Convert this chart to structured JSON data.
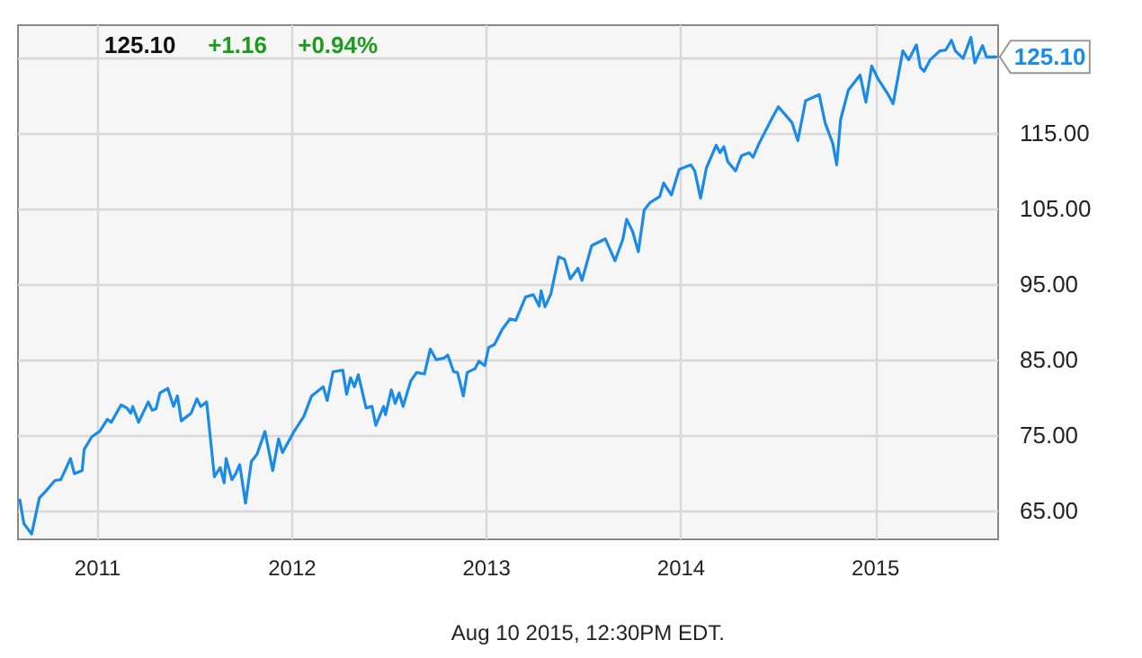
{
  "chart_data": {
    "type": "line",
    "x": [
      2010.6,
      2010.62,
      2010.66,
      2010.7,
      2010.73,
      2010.78,
      2010.81,
      2010.86,
      2010.88,
      2010.92,
      2010.93,
      2010.97,
      2011.01,
      2011.05,
      2011.07,
      2011.12,
      2011.15,
      2011.17,
      2011.18,
      2011.21,
      2011.26,
      2011.28,
      2011.3,
      2011.32,
      2011.36,
      2011.39,
      2011.41,
      2011.43,
      2011.48,
      2011.51,
      2011.53,
      2011.56,
      2011.6,
      2011.63,
      2011.65,
      2011.66,
      2011.69,
      2011.71,
      2011.73,
      2011.76,
      2011.79,
      2011.82,
      2011.86,
      2011.9,
      2011.93,
      2011.95,
      2012.01,
      2012.06,
      2012.1,
      2012.16,
      2012.18,
      2012.21,
      2012.26,
      2012.28,
      2012.3,
      2012.32,
      2012.34,
      2012.38,
      2012.41,
      2012.43,
      2012.47,
      2012.48,
      2012.51,
      2012.53,
      2012.55,
      2012.57,
      2012.61,
      2012.64,
      2012.68,
      2012.71,
      2012.74,
      2012.78,
      2012.8,
      2012.83,
      2012.85,
      2012.88,
      2012.9,
      2012.94,
      2012.96,
      2012.99,
      2013.01,
      2013.04,
      2013.08,
      2013.12,
      2013.15,
      2013.2,
      2013.24,
      2013.27,
      2013.28,
      2013.3,
      2013.33,
      2013.37,
      2013.4,
      2013.43,
      2013.47,
      2013.49,
      2013.54,
      2013.61,
      2013.66,
      2013.7,
      2013.72,
      2013.75,
      2013.78,
      2013.81,
      2013.84,
      2013.89,
      2013.91,
      2013.95,
      2013.99,
      2014.05,
      2014.07,
      2014.1,
      2014.13,
      2014.18,
      2014.2,
      2014.22,
      2014.24,
      2014.28,
      2014.31,
      2014.35,
      2014.37,
      2014.4,
      2014.47,
      2014.5,
      2014.57,
      2014.6,
      2014.64,
      2014.71,
      2014.74,
      2014.78,
      2014.8,
      2014.82,
      2014.86,
      2014.92,
      2014.95,
      2014.98,
      2015.01,
      2015.06,
      2015.09,
      2015.14,
      2015.17,
      2015.21,
      2015.23,
      2015.25,
      2015.28,
      2015.33,
      2015.36,
      2015.39,
      2015.41,
      2015.45,
      2015.49,
      2015.51,
      2015.55,
      2015.57,
      2015.62
    ],
    "series": [
      {
        "color": "#1a8be6",
        "values": [
          66.4,
          63.3,
          61.9,
          66.7,
          67.5,
          69.0,
          69.1,
          71.9,
          69.9,
          70.3,
          73.1,
          74.8,
          75.5,
          77.1,
          76.7,
          79.0,
          78.6,
          77.9,
          78.8,
          76.7,
          79.4,
          78.3,
          78.5,
          80.6,
          81.2,
          78.8,
          80.2,
          76.9,
          77.9,
          79.8,
          78.8,
          79.4,
          69.5,
          70.7,
          68.7,
          71.9,
          69.1,
          69.9,
          71.1,
          66.0,
          71.5,
          72.5,
          75.5,
          70.3,
          74.5,
          72.7,
          75.5,
          77.5,
          80.2,
          81.4,
          79.6,
          83.4,
          83.6,
          80.4,
          82.6,
          81.4,
          83.0,
          78.6,
          78.8,
          76.3,
          78.8,
          77.7,
          81.0,
          79.2,
          80.6,
          78.8,
          82.2,
          83.3,
          83.1,
          86.4,
          85.0,
          85.2,
          85.6,
          83.4,
          83.3,
          80.2,
          83.3,
          83.8,
          84.8,
          84.2,
          86.6,
          87.0,
          89.0,
          90.4,
          90.2,
          93.3,
          93.6,
          92.1,
          94.1,
          92.0,
          93.7,
          98.6,
          98.3,
          95.7,
          97.1,
          95.5,
          100.1,
          101.0,
          98.1,
          100.9,
          103.6,
          102.0,
          99.3,
          104.8,
          105.8,
          106.6,
          108.4,
          106.8,
          110.2,
          110.8,
          110.0,
          106.4,
          110.4,
          113.4,
          112.4,
          113.2,
          111.2,
          110.0,
          112.0,
          112.4,
          111.8,
          113.6,
          117.1,
          118.5,
          116.4,
          114.0,
          119.3,
          120.1,
          116.4,
          113.6,
          110.8,
          116.8,
          120.7,
          122.7,
          119.1,
          123.9,
          122.3,
          120.3,
          118.9,
          125.9,
          124.7,
          126.7,
          123.7,
          123.2,
          124.7,
          125.9,
          126.0,
          127.3,
          125.9,
          124.9,
          127.7,
          124.3,
          126.6,
          125.1,
          125.1
        ]
      }
    ],
    "xlim": [
      2010.59,
      2015.63
    ],
    "xticks": [
      2011,
      2012,
      2013,
      2014,
      2015
    ],
    "ylim": [
      61.2,
      129.3
    ],
    "yticks": [
      {
        "value": 65,
        "label": "65.00"
      },
      {
        "value": 75,
        "label": "75.00"
      },
      {
        "value": 85,
        "label": "85.00"
      },
      {
        "value": 95,
        "label": "95.00"
      },
      {
        "value": 105,
        "label": "105.00"
      },
      {
        "value": 115,
        "label": "115.00"
      },
      {
        "value": 125,
        "label": null
      }
    ],
    "grid": true,
    "marker": "none",
    "line_style": "solid",
    "annotations": [
      "125.10",
      "+1.16",
      "+0.94%",
      {
        "text": "125.10",
        "x": 2015.62,
        "y": 125.1
      },
      "Aug 10 2015, 12:30PM EDT."
    ]
  }
}
